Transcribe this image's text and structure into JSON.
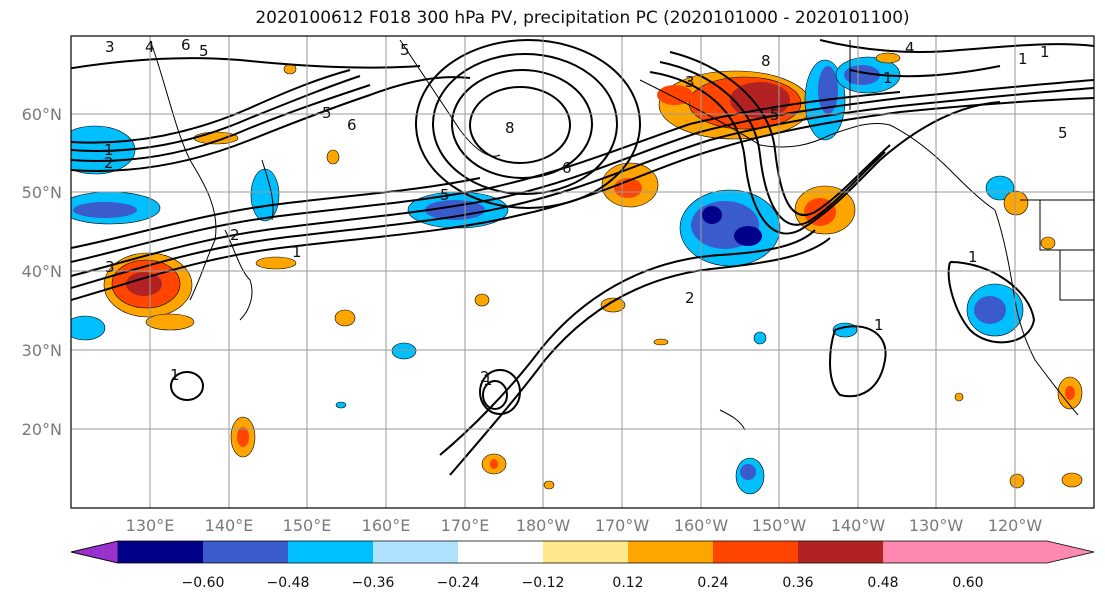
{
  "title": "2020100612 F018 300 hPa PV, precipitation PC (2020101000 - 2020101100)",
  "lat_labels": [
    "60°N",
    "50°N",
    "40°N",
    "30°N",
    "20°N"
  ],
  "lon_labels": [
    "130°E",
    "140°E",
    "150°E",
    "160°E",
    "170°E",
    "180°W",
    "170°W",
    "160°W",
    "150°W",
    "140°W",
    "130°W",
    "120°W"
  ],
  "colorbar": {
    "ticks": [
      "−0.60",
      "−0.48",
      "−0.36",
      "−0.24",
      "−0.12",
      "0.12",
      "0.24",
      "0.36",
      "0.48",
      "0.60"
    ],
    "colors": [
      "#9932cc",
      "#00008b",
      "#3a5bcc",
      "#00bfff",
      "#b0e2ff",
      "#ffffff",
      "#ffe88c",
      "#ffa500",
      "#ff4500",
      "#b22222",
      "#ff88b0"
    ]
  },
  "contour_labels": [
    "3",
    "4",
    "6",
    "5",
    "1",
    "2",
    "5",
    "5",
    "6",
    "8",
    "6",
    "1",
    "5",
    "3",
    "2",
    "2",
    "8",
    "5",
    "3",
    "1",
    "5",
    "4",
    "1",
    "1",
    "2",
    "1",
    "1",
    "1",
    "1"
  ],
  "colors": {
    "contour": "#000000",
    "grid": "#9a9a9a",
    "coast": "#000000"
  }
}
